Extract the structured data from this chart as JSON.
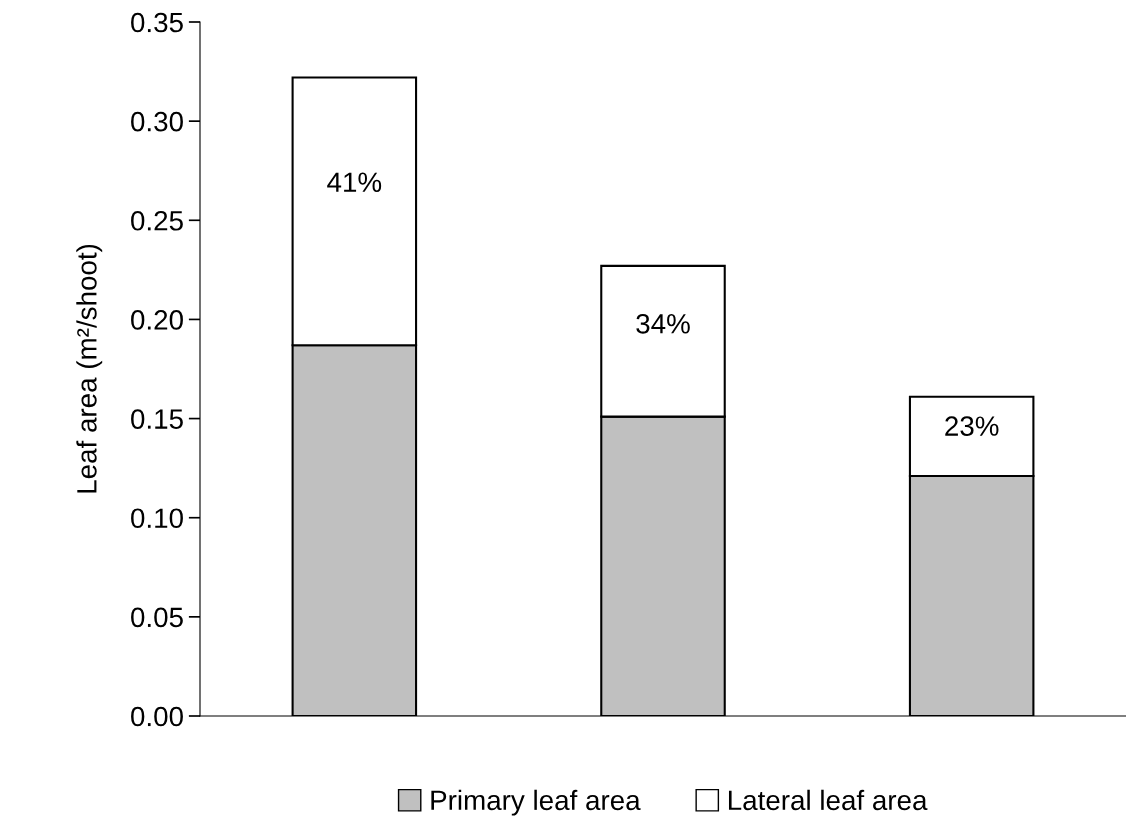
{
  "chart_data": {
    "type": "bar",
    "stacked": true,
    "ylabel": "Leaf area (m²/shoot)",
    "categories": [
      null,
      null,
      null
    ],
    "series": [
      {
        "name": "Primary leaf area",
        "color": "#c0c0c0",
        "values": [
          0.187,
          0.151,
          0.121
        ]
      },
      {
        "name": "Lateral leaf area",
        "color": "#ffffff",
        "values": [
          0.135,
          0.076,
          0.04
        ]
      }
    ],
    "annotations": [
      "41%",
      "34%",
      "23%"
    ],
    "ylim": [
      0,
      0.35
    ],
    "yticks": [
      {
        "value": 0,
        "label": "0.00"
      },
      {
        "value": 0.05,
        "label": "0.05"
      },
      {
        "value": 0.1,
        "label": "0.10"
      },
      {
        "value": 0.15,
        "label": "0.15"
      },
      {
        "value": 0.2,
        "label": "0.20"
      },
      {
        "value": 0.25,
        "label": "0.25"
      },
      {
        "value": 0.3,
        "label": "0.30"
      },
      {
        "value": 0.35,
        "label": "0.35"
      }
    ],
    "grid": false,
    "legend": "bottom"
  }
}
